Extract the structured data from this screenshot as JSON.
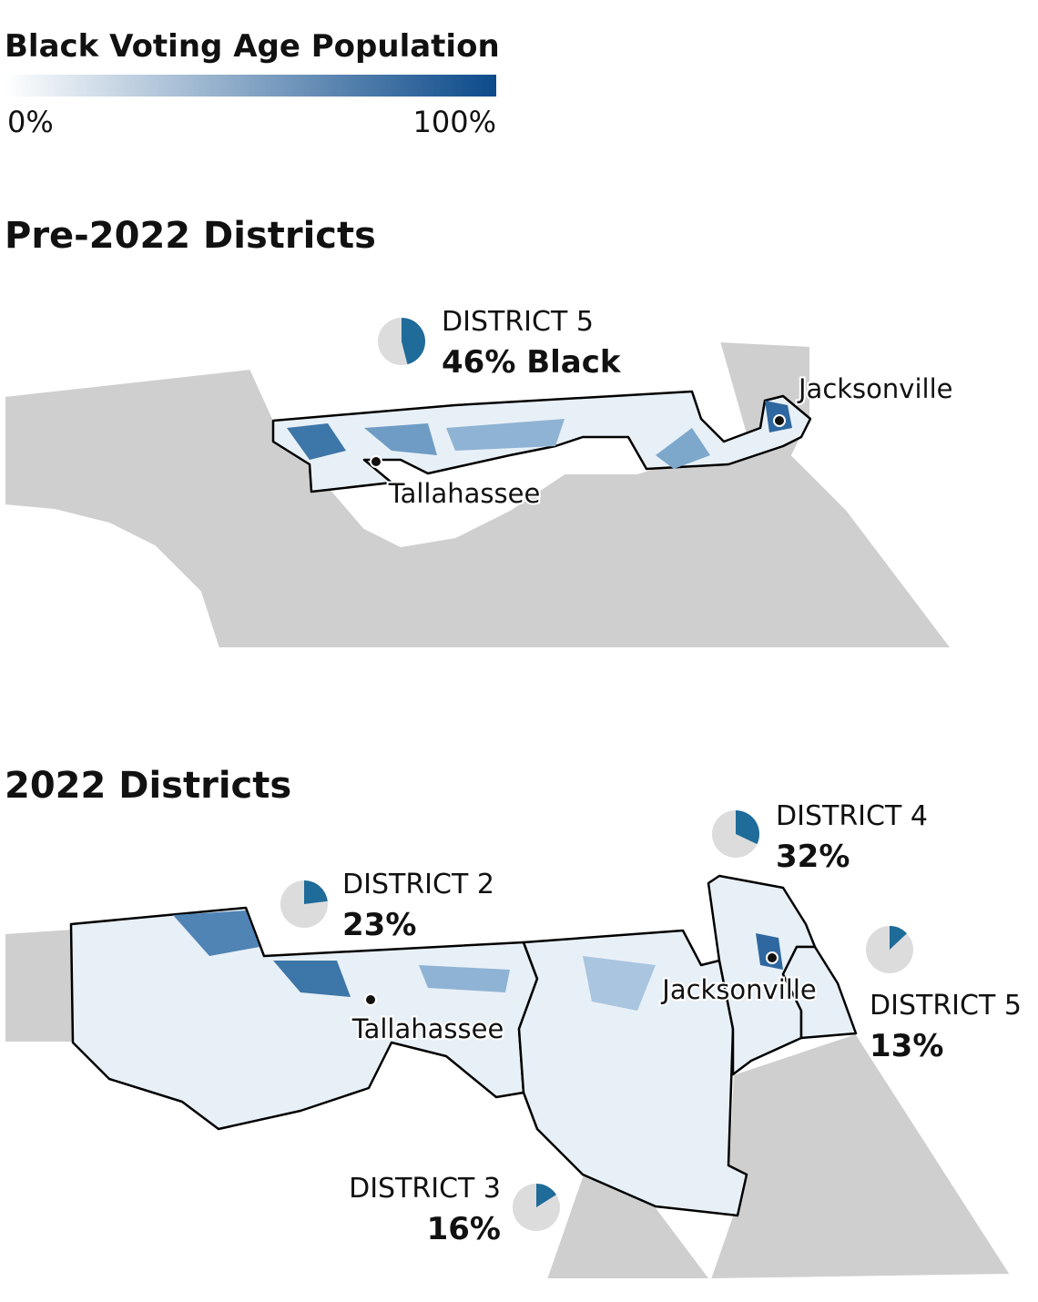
{
  "legend": {
    "title": "Black Voting Age Population",
    "ticks": [
      {
        "value": 0,
        "label": "0%"
      },
      {
        "value": 100,
        "label": "100%"
      }
    ]
  },
  "maps": [
    {
      "title": "Pre-2022 Districts",
      "cities": [
        "Tallahassee",
        "Jacksonville"
      ],
      "districts": [
        {
          "name": "DISTRICT 5",
          "value": 46,
          "value_label": "46% Black"
        }
      ]
    },
    {
      "title": "2022 Districts",
      "cities": [
        "Tallahassee",
        "Jacksonville"
      ],
      "districts": [
        {
          "name": "DISTRICT 2",
          "value": 23,
          "value_label": "23%"
        },
        {
          "name": "DISTRICT 3",
          "value": 16,
          "value_label": "16%"
        },
        {
          "name": "DISTRICT 4",
          "value": 32,
          "value_label": "32%"
        },
        {
          "name": "DISTRICT 5",
          "value": 13,
          "value_label": "13%"
        }
      ]
    }
  ]
}
